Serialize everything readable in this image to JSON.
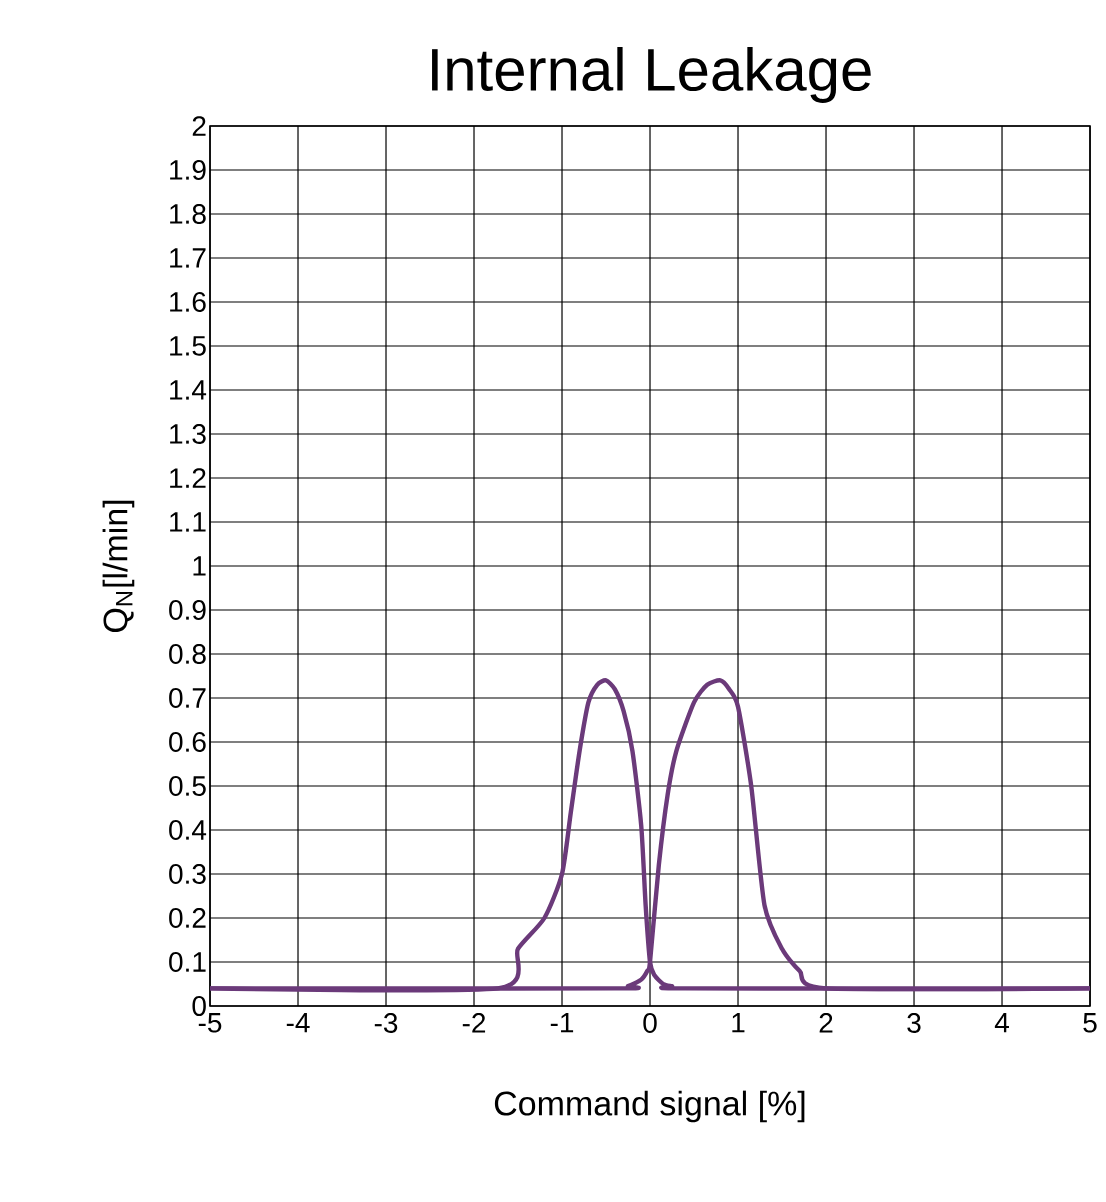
{
  "chart_data": {
    "type": "line",
    "title": "Internal Leakage",
    "xlabel": "Command signal [%]",
    "ylabel": "Q$_{N}$[l/min]",
    "xlim": [
      -5,
      5
    ],
    "ylim": [
      0,
      2
    ],
    "xticks": [
      -5,
      -4,
      -3,
      -2,
      -1,
      0,
      1,
      2,
      3,
      4,
      5
    ],
    "yticks": [
      0,
      0.1,
      0.2,
      0.3,
      0.4,
      0.5,
      0.6,
      0.7,
      0.8,
      0.9,
      1,
      1.1,
      1.2,
      1.3,
      1.4,
      1.5,
      1.6,
      1.7,
      1.8,
      1.9,
      2
    ],
    "grid": true,
    "marker": "none",
    "line_style": "solid",
    "series": [
      {
        "color": "#6b3a7a",
        "x": [
          -5,
          -1.73,
          -1.5,
          -1.2,
          -1.0,
          -0.9,
          -0.8,
          -0.7,
          -0.6,
          -0.5,
          -0.4,
          -0.3,
          -0.2,
          -0.1,
          -0.05,
          0,
          0.05,
          0.15,
          0.25,
          0.4,
          5
        ],
        "values": [
          0.04,
          0.04,
          0.13,
          0.2,
          0.3,
          0.44,
          0.58,
          0.69,
          0.73,
          0.74,
          0.72,
          0.67,
          0.58,
          0.41,
          0.23,
          0.1,
          0.07,
          0.05,
          0.045,
          0.04,
          0.04
        ]
      },
      {
        "color": "#6b3a7a",
        "x": [
          -5,
          -0.4,
          -0.25,
          -0.1,
          -0.03,
          0,
          0.1,
          0.2,
          0.3,
          0.5,
          0.65,
          0.8,
          0.9,
          1.0,
          1.15,
          1.3,
          1.5,
          1.7,
          2.0,
          5
        ],
        "values": [
          0.04,
          0.04,
          0.045,
          0.06,
          0.08,
          0.1,
          0.32,
          0.48,
          0.58,
          0.69,
          0.73,
          0.74,
          0.72,
          0.68,
          0.5,
          0.23,
          0.13,
          0.08,
          0.04,
          0.04
        ]
      }
    ]
  }
}
